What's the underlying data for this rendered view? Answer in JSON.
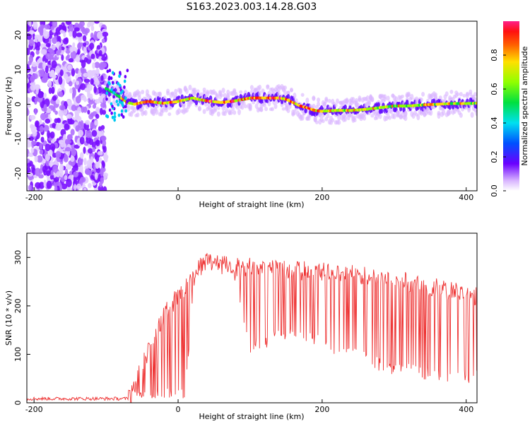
{
  "title": "S163.2023.003.14.28.G03",
  "chart_data": [
    {
      "type": "heatmap",
      "xlabel": "Height of straight line (km)",
      "ylabel": "Frequency (Hz)",
      "xlim": [
        -210,
        415
      ],
      "ylim": [
        -25,
        24
      ],
      "xticks": [
        -200,
        0,
        200,
        400
      ],
      "yticks": [
        -20,
        -10,
        0,
        10,
        20
      ],
      "colorbar": {
        "label": "Normalized spectral amplitude",
        "range": [
          0,
          1
        ],
        "ticks": [
          "0.0",
          "0.2",
          "0.4",
          "0.6",
          "0.8"
        ]
      },
      "ridge": {
        "x": [
          -100,
          -90,
          -80,
          -70,
          -60,
          -50,
          -40,
          -20,
          0,
          20,
          40,
          60,
          80,
          100,
          120,
          140,
          150,
          160,
          170,
          180,
          190,
          200,
          220,
          240,
          260,
          280,
          300,
          320,
          340,
          360,
          380,
          400,
          415
        ],
        "y": [
          4.5,
          3.5,
          2.0,
          0.5,
          0.0,
          0.5,
          0.8,
          0.3,
          0.8,
          1.8,
          1.0,
          0.5,
          1.0,
          1.8,
          1.8,
          1.8,
          1.5,
          0.5,
          -0.5,
          -1.0,
          -1.8,
          -2.0,
          -1.8,
          -1.8,
          -1.5,
          -1.0,
          -0.5,
          -0.5,
          -0.2,
          0.0,
          0.2,
          0.2,
          0.3
        ]
      }
    },
    {
      "type": "line",
      "xlabel": "Height of straight line (km)",
      "ylabel": "SNR (10 * v/v)",
      "xlim": [
        -210,
        415
      ],
      "ylim": [
        0,
        350
      ],
      "xticks": [
        -200,
        0,
        200,
        400
      ],
      "yticks": [
        0,
        100,
        200,
        300
      ],
      "series": [
        {
          "color": "#ee3333",
          "envelope": {
            "x": [
              -210,
              -70,
              -60,
              -40,
              -20,
              0,
              10,
              20,
              30,
              40,
              60,
              80,
              100,
              150,
              200,
              250,
              300,
              350,
              400,
              415
            ],
            "upper": [
              12,
              12,
              60,
              130,
              200,
              240,
              255,
              275,
              300,
              310,
              305,
              300,
              300,
              295,
              290,
              285,
              275,
              260,
              245,
              240
            ],
            "lower": [
              5,
              5,
              5,
              5,
              5,
              5,
              5,
              200,
              270,
              280,
              270,
              250,
              100,
              130,
              110,
              80,
              55,
              45,
              40,
              40
            ]
          }
        }
      ]
    }
  ]
}
